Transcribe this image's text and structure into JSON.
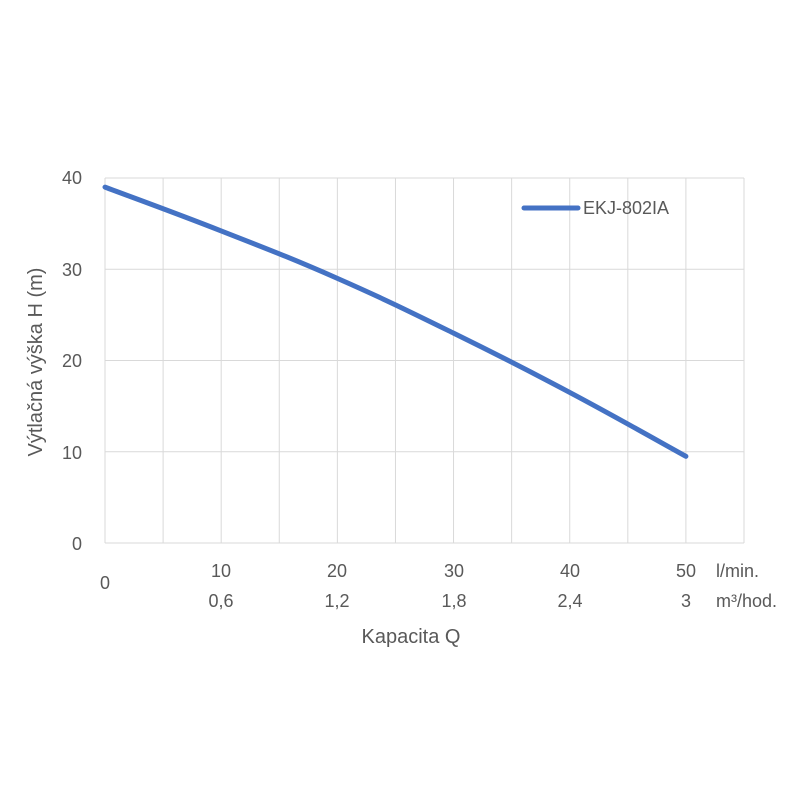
{
  "chart_data": {
    "type": "line",
    "title": "",
    "xlabel": "Kapacita Q",
    "ylabel": "Výtlačná výška H (m)",
    "xlim": [
      0,
      55
    ],
    "ylim": [
      0,
      40
    ],
    "y_ticks": [
      "0",
      "10",
      "20",
      "30",
      "40"
    ],
    "x_ticks": [
      {
        "x": 0,
        "primary": "0",
        "secondary": ""
      },
      {
        "x": 10,
        "primary": "10",
        "secondary": "0,6"
      },
      {
        "x": 20,
        "primary": "20",
        "secondary": "1,2"
      },
      {
        "x": 30,
        "primary": "30",
        "secondary": "1,8"
      },
      {
        "x": 40,
        "primary": "40",
        "secondary": "2,4"
      },
      {
        "x": 50,
        "primary": "50",
        "secondary": "3"
      }
    ],
    "x_unit_primary": "l/min.",
    "x_unit_secondary": "m³/hod.",
    "grid": true,
    "legend_position": "top-right",
    "series": [
      {
        "name": "EKJ-802IA",
        "color": "#4472c4",
        "x": [
          0,
          10,
          20,
          30,
          40,
          50
        ],
        "y": [
          39,
          34.2,
          29,
          23,
          16.5,
          9.5
        ]
      }
    ]
  }
}
